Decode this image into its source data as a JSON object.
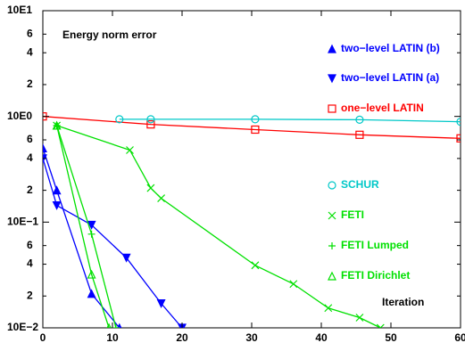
{
  "chart_data": {
    "type": "line",
    "y_label": "Energy norm error",
    "x_label": "Iteration",
    "log_y": true,
    "xlim": [
      0,
      60
    ],
    "xticks": [
      0,
      10,
      20,
      30,
      40,
      50,
      60
    ],
    "ylim": [
      0.01,
      10
    ],
    "yticks": [
      {
        "value": 10,
        "label": "10E1"
      },
      6,
      4,
      2,
      {
        "value": 1,
        "label": "10E0"
      },
      {
        "value": 0.6,
        "label": "6"
      },
      {
        "value": 0.4,
        "label": "4"
      },
      {
        "value": 0.2,
        "label": "2"
      },
      {
        "value": 0.1,
        "label": "10E−1"
      },
      {
        "value": 0.06,
        "label": "6"
      },
      {
        "value": 0.04,
        "label": "4"
      },
      {
        "value": 0.02,
        "label": "2"
      },
      {
        "value": 0.01,
        "label": "10E−2"
      }
    ],
    "series": [
      {
        "name": "two−level LATIN (b)",
        "color": "#0000ff",
        "marker": "triangle-up",
        "x": [
          0,
          2,
          7,
          11
        ],
        "values": [
          0.5,
          0.2,
          0.021,
          0.01
        ]
      },
      {
        "name": "two−level LATIN (a)",
        "color": "#0000ff",
        "marker": "triangle-down",
        "x": [
          0,
          2,
          7,
          12,
          17,
          20
        ],
        "values": [
          0.4,
          0.144,
          0.094,
          0.046,
          0.017,
          0.01
        ]
      },
      {
        "name": "one−level LATIN",
        "color": "#ff0000",
        "marker": "square",
        "x": [
          0,
          15.5,
          30.5,
          45.5,
          60
        ],
        "values": [
          1.0,
          0.84,
          0.75,
          0.67,
          0.62
        ]
      },
      {
        "name": "SCHUR",
        "color": "#00c8c8",
        "marker": "circle",
        "x": [
          11,
          15.5,
          30.5,
          45.5,
          60
        ],
        "values": [
          0.94,
          0.94,
          0.94,
          0.93,
          0.89
        ]
      },
      {
        "name": "FETI",
        "color": "#00e000",
        "marker": "x",
        "x": [
          2,
          12.5,
          15.5,
          17,
          30.5,
          36,
          41,
          45.5,
          48.5
        ],
        "values": [
          0.82,
          0.48,
          0.21,
          0.168,
          0.039,
          0.026,
          0.0154,
          0.0125,
          0.01
        ]
      },
      {
        "name": "FETI Lumped",
        "color": "#00e000",
        "marker": "plus",
        "x": [
          2,
          7,
          10.5
        ],
        "values": [
          0.82,
          0.077,
          0.01
        ]
      },
      {
        "name": "FETI Dirichlet",
        "color": "#00e000",
        "marker": "triangle-up-open",
        "x": [
          2,
          7,
          9.5
        ],
        "values": [
          0.82,
          0.032,
          0.01
        ]
      }
    ]
  }
}
